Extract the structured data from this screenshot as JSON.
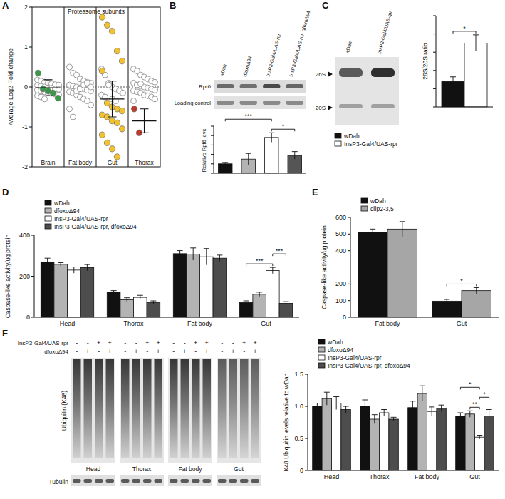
{
  "panel_labels": [
    "A",
    "B",
    "C",
    "D",
    "E",
    "F"
  ],
  "blots": {
    "B": {
      "lanes": [
        "wDah",
        "dfoxoΔ94",
        "InsP3-Gal4/UAS-rpr",
        "InsP3-Gal4/UAS-rpr, dfoxoΔ94"
      ],
      "rows": [
        "Rpt6",
        "Loading control"
      ]
    },
    "C": {
      "lanes": [
        "wDah",
        "InsP3-Gal4/UAS-rpr"
      ],
      "bands": [
        "26S",
        "20S"
      ]
    },
    "F": {
      "tissues": [
        "Head",
        "Thorax",
        "Fat body",
        "Gut"
      ],
      "genotype_rows": [
        {
          "label": "InsP3-Gal4/UAS-rpr",
          "marks": [
            "-",
            "-",
            "+",
            "+",
            "-",
            "-",
            "+",
            "+",
            "-",
            "-",
            "+",
            "+",
            "-",
            "-",
            "+",
            "+"
          ]
        },
        {
          "label": "dfoxoΔ94",
          "marks": [
            "-",
            "+",
            "-",
            "+",
            "-",
            "+",
            "-",
            "+",
            "-",
            "+",
            "-",
            "+",
            "-",
            "+",
            "-",
            "+"
          ]
        }
      ],
      "rows": [
        "Ubiquitin (K48)",
        "Tubulin"
      ]
    }
  },
  "chart_data": [
    {
      "type": "strip",
      "title": "Proteasome subunits",
      "y_label": "Average Log2 Fold change",
      "categories": [
        "Brain",
        "Fat body",
        "Gut",
        "Thorax"
      ],
      "ylim": [
        -2,
        2
      ],
      "yticks": [
        -2,
        -1,
        0,
        1,
        2
      ],
      "hline": 0,
      "groups": [
        {
          "category": "Brain",
          "values": [
            0.18,
            0.15,
            0.12,
            0.1,
            0.08,
            0.06,
            0.05,
            0.04,
            0.02,
            0.0,
            -0.02,
            -0.03,
            -0.05,
            -0.06,
            -0.08,
            -0.1,
            -0.12,
            -0.14,
            -0.16,
            -0.18,
            -0.2,
            -0.22,
            -0.25,
            -0.3
          ],
          "highlight_values": [
            0.35,
            -0.05,
            -0.1,
            -0.15,
            -0.28
          ],
          "color": "#3a9a4a",
          "mean": -0.02,
          "sd": 0.2
        },
        {
          "category": "Fat body",
          "values": [
            0.5,
            0.35,
            0.3,
            0.2,
            0.15,
            0.12,
            0.1,
            0.05,
            0.02,
            0.0,
            -0.02,
            -0.05,
            -0.08,
            -0.1,
            -0.12,
            -0.15,
            -0.2,
            -0.25,
            -0.3,
            -0.35,
            -0.45,
            -0.55,
            -0.75,
            -0.1,
            -0.05,
            0.05,
            0.1,
            0.0
          ],
          "highlight_values": []
        },
        {
          "category": "Gut",
          "values": [
            0.45,
            0.3,
            0.1,
            0.0,
            -0.05,
            -0.1,
            -0.15,
            -0.2,
            -0.25,
            0.05,
            -0.3,
            -0.35
          ],
          "highlight_values": [
            1.75,
            1.55,
            1.4,
            0.9,
            0.65,
            0.4,
            -0.4,
            -0.5,
            -0.55,
            -0.6,
            -0.7,
            -0.75,
            -0.85,
            -0.9,
            -1.05,
            -1.2,
            -1.4,
            -1.55,
            -1.75
          ],
          "color": "#f2c12e",
          "mean": -0.3,
          "sd": 0.45
        },
        {
          "category": "Thorax",
          "values": [
            0.45,
            0.4,
            0.3,
            0.25,
            0.2,
            0.15,
            0.12,
            0.1,
            0.05,
            0.02,
            0.0,
            -0.02,
            -0.05,
            -0.08,
            -0.1,
            -0.12,
            -0.15,
            -0.2,
            -0.22,
            -0.25,
            -0.3,
            -0.35,
            0.05,
            0.08
          ],
          "highlight_values": [
            -0.55,
            -1.15
          ],
          "color": "#c0392b",
          "mean": -0.85,
          "sd": 0.3
        }
      ]
    },
    {
      "type": "bar",
      "y_label": "Relative Rpt6 level",
      "categories": [
        null,
        null,
        null,
        null
      ],
      "values": [
        1.0,
        1.5,
        3.8,
        1.9
      ],
      "errors": [
        0.15,
        0.6,
        0.5,
        0.4
      ],
      "colors": [
        "#111111",
        "#b3b3b3",
        "#ffffff",
        "#555555"
      ],
      "ylim": [
        0,
        5
      ],
      "yticks": [
        0,
        1,
        2,
        3,
        4,
        5
      ],
      "tick_labels": false,
      "annotations": [
        {
          "text": "*",
          "from": 2,
          "to": 3
        },
        {
          "text": "***",
          "from": 0,
          "to": 2
        }
      ]
    },
    {
      "type": "bar",
      "y_label": "26S/20S ratio",
      "categories": [
        null
      ],
      "series": [
        {
          "name": "wDah",
          "color": "#111111",
          "values": [
            1.4
          ],
          "errors": [
            0.25
          ]
        },
        {
          "name": "InsP3-Gal4/UAS-rpr",
          "color": "#ffffff",
          "values": [
            3.5
          ],
          "errors": [
            0.45
          ]
        }
      ],
      "ylim": [
        0,
        5
      ],
      "yticks": [
        0,
        1,
        2,
        3,
        4,
        5
      ],
      "tick_labels": false,
      "legend": "lower left",
      "annotations": [
        {
          "text": "*",
          "category": 0,
          "from": 0,
          "to": 1
        }
      ]
    },
    {
      "type": "bar",
      "y_label": "Caspase-like activity/ug protein",
      "categories": [
        "Head",
        "Thorax",
        "Fat body",
        "Gut"
      ],
      "series": [
        {
          "name": "wDah",
          "color": "#111111",
          "values": [
            270,
            122,
            310,
            72
          ],
          "errors": [
            18,
            8,
            15,
            8
          ]
        },
        {
          "name": "dfoxoΔ94",
          "color": "#b3b3b3",
          "values": [
            258,
            85,
            308,
            112
          ],
          "errors": [
            8,
            10,
            30,
            10
          ]
        },
        {
          "name": "InsP3-Gal4/UAS-rpr",
          "color": "#ffffff",
          "values": [
            230,
            97,
            295,
            228
          ],
          "errors": [
            15,
            10,
            40,
            15
          ]
        },
        {
          "name": "InsP3-Gal4/UAS-rpr, dfoxoΔ94",
          "color": "#4d4d4d",
          "values": [
            242,
            72,
            288,
            68
          ],
          "errors": [
            15,
            8,
            15,
            8
          ]
        }
      ],
      "ylim": [
        0,
        400
      ],
      "yticks": [
        0,
        200,
        400
      ],
      "legend": "upper left",
      "annotations": [
        {
          "text": "***",
          "category": 3,
          "from": 0,
          "to": 2
        },
        {
          "text": "***",
          "category": 3,
          "from": 2,
          "to": 3
        }
      ]
    },
    {
      "type": "bar",
      "y_label": "Caspase-like activity/ug protein",
      "categories": [
        "Fat body",
        "Gut"
      ],
      "series": [
        {
          "name": "wDah",
          "color": "#111111",
          "values": [
            510,
            97
          ],
          "errors": [
            20,
            10
          ]
        },
        {
          "name": "dilp2-3,5",
          "color": "#a6a6a6",
          "values": [
            530,
            160
          ],
          "errors": [
            45,
            18
          ]
        }
      ],
      "ylim": [
        0,
        600
      ],
      "yticks": [
        0,
        100,
        200,
        400,
        500,
        600
      ],
      "legend": "upper left",
      "annotations": [
        {
          "text": "*",
          "category": 1,
          "from": 0,
          "to": 1
        }
      ]
    },
    {
      "type": "bar",
      "y_label": "K48 Ubiquitin levels relative to wDah",
      "categories": [
        "Head",
        "Thorax",
        "Fat body",
        "Gut"
      ],
      "series": [
        {
          "name": "wDah",
          "color": "#111111",
          "values": [
            1.0,
            1.0,
            0.98,
            0.85
          ],
          "errors": [
            0.05,
            0.1,
            0.1,
            0.05
          ]
        },
        {
          "name": "dfoxoΔ94",
          "color": "#b3b3b3",
          "values": [
            1.12,
            0.8,
            1.2,
            0.88
          ],
          "errors": [
            0.1,
            0.07,
            0.12,
            0.05
          ]
        },
        {
          "name": "InsP3-Gal4/UAS-rpr",
          "color": "#ffffff",
          "values": [
            1.05,
            0.9,
            0.92,
            0.52
          ],
          "errors": [
            0.1,
            0.05,
            0.07,
            0.03
          ]
        },
        {
          "name": "InsP3-Gal4/UAS-rpr, dfoxoΔ94",
          "color": "#4d4d4d",
          "values": [
            0.95,
            0.8,
            0.97,
            0.85
          ],
          "errors": [
            0.05,
            0.03,
            0.05,
            0.1
          ]
        }
      ],
      "ylim": [
        0,
        1.5
      ],
      "yticks": [
        0,
        0.5,
        {
          "value": 1,
          "label": "1.0"
        },
        1.5
      ],
      "legend": "upper left",
      "annotations": [
        {
          "text": "**",
          "category": 3,
          "from": 1,
          "to": 2
        },
        {
          "text": "*",
          "category": 3,
          "from": 2,
          "to": 3
        },
        {
          "text": "*",
          "category": 3,
          "from": 0,
          "to": 2
        }
      ]
    }
  ]
}
